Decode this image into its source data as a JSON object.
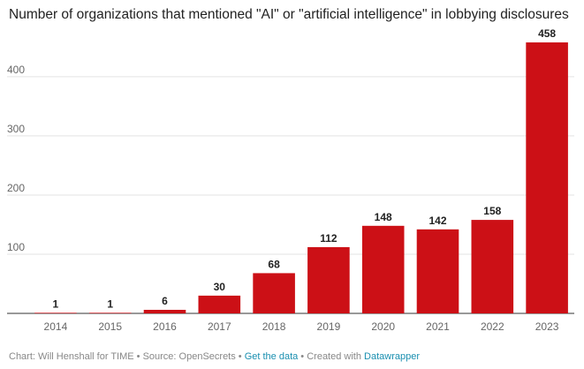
{
  "chart_data": {
    "type": "bar",
    "title": "Number of organizations that mentioned \"AI\" or \"artificial intelligence\" in lobbying disclosures",
    "categories": [
      "2014",
      "2015",
      "2016",
      "2017",
      "2018",
      "2019",
      "2020",
      "2021",
      "2022",
      "2023"
    ],
    "values": [
      1,
      1,
      6,
      30,
      68,
      112,
      148,
      142,
      158,
      458
    ],
    "data_labels": [
      "1",
      "1",
      "6",
      "30",
      "68",
      "112",
      "148",
      "142",
      "158",
      "458"
    ],
    "xlabel": "",
    "ylabel": "",
    "ylim": [
      0,
      470
    ],
    "yticks": [
      100,
      200,
      300,
      400
    ],
    "grid": true,
    "bar_color": "#cc1016"
  },
  "footer": {
    "credit": "Chart: Will Henshall for TIME • Source: OpenSecrets • ",
    "get_data": "Get the data",
    "created": " • Created with ",
    "tool": "Datawrapper"
  }
}
